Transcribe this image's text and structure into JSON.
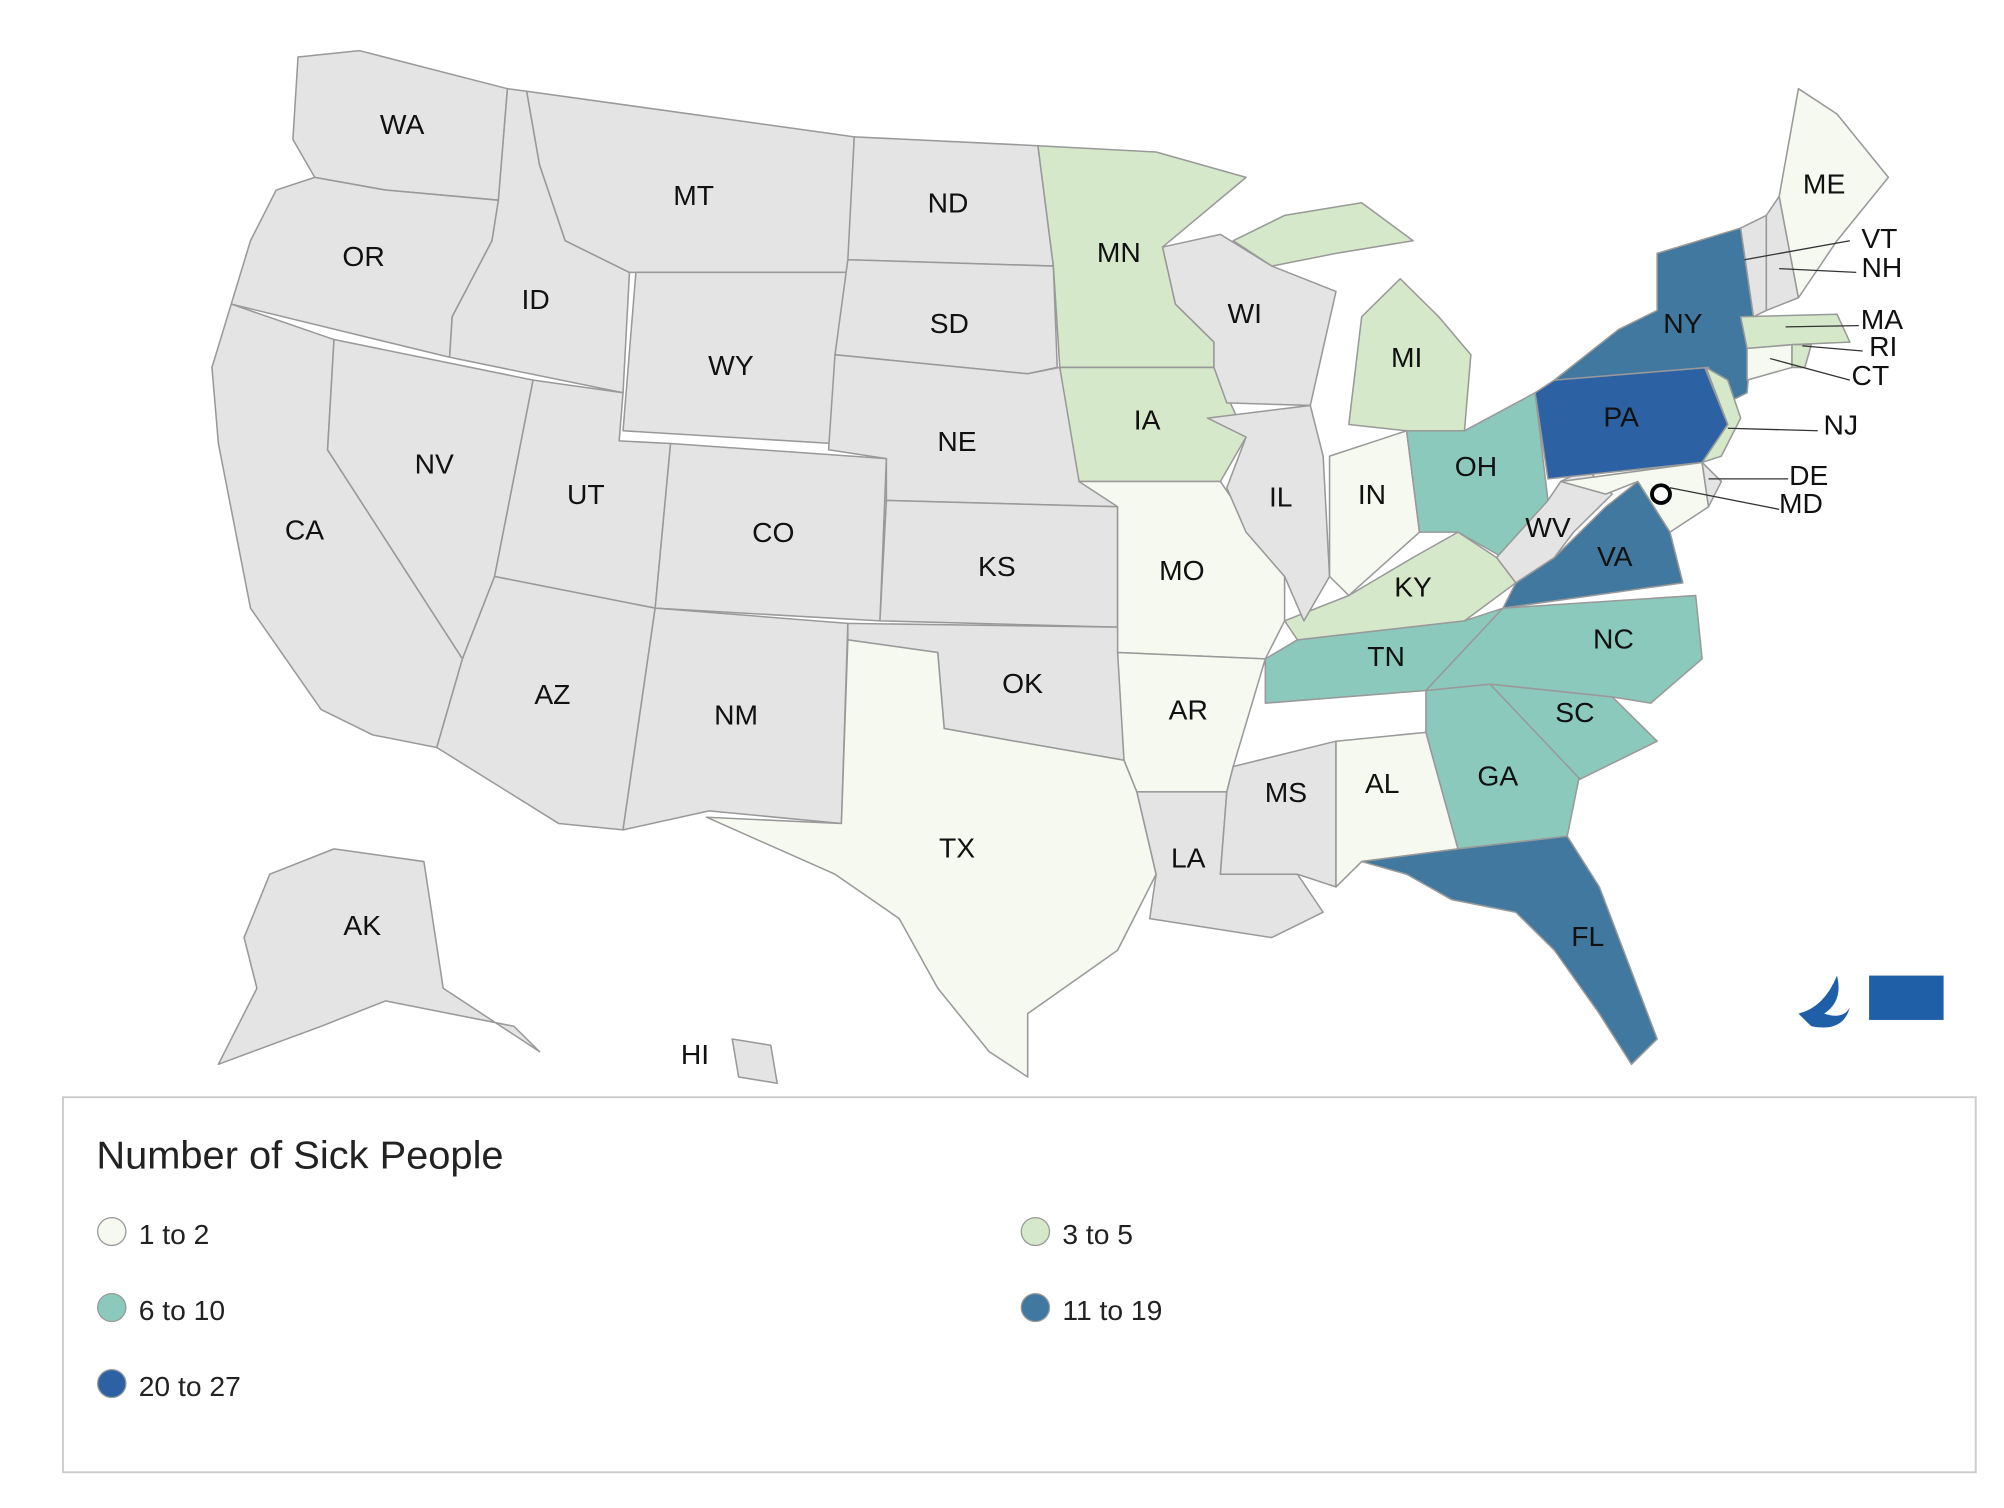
{
  "legend": {
    "title": "Number of Sick People",
    "items": [
      {
        "label": "1 to 2",
        "color": "#f5f9ef"
      },
      {
        "label": "3 to 5",
        "color": "#d5e8c9"
      },
      {
        "label": "6 to 10",
        "color": "#8cc9bd"
      },
      {
        "label": "11 to 19",
        "color": "#40789f"
      },
      {
        "label": "20 to 27",
        "color": "#2c62a3"
      }
    ]
  },
  "no_data_color": "#e4e4e4",
  "states": [
    {
      "label": "WA",
      "category": null
    },
    {
      "label": "OR",
      "category": null
    },
    {
      "label": "ID",
      "category": null
    },
    {
      "label": "MT",
      "category": null
    },
    {
      "label": "WY",
      "category": null
    },
    {
      "label": "ND",
      "category": null
    },
    {
      "label": "SD",
      "category": null
    },
    {
      "label": "NE",
      "category": null
    },
    {
      "label": "CA",
      "category": null
    },
    {
      "label": "NV",
      "category": null
    },
    {
      "label": "UT",
      "category": null
    },
    {
      "label": "CO",
      "category": null
    },
    {
      "label": "AZ",
      "category": null
    },
    {
      "label": "NM",
      "category": null
    },
    {
      "label": "KS",
      "category": null
    },
    {
      "label": "OK",
      "category": null
    },
    {
      "label": "TX",
      "category": 0
    },
    {
      "label": "MN",
      "category": 1
    },
    {
      "label": "IA",
      "category": 1
    },
    {
      "label": "MO",
      "category": 0
    },
    {
      "label": "AR",
      "category": 0
    },
    {
      "label": "LA",
      "category": null
    },
    {
      "label": "MS",
      "category": null
    },
    {
      "label": "AL",
      "category": 0
    },
    {
      "label": "TN",
      "category": 2
    },
    {
      "label": "KY",
      "category": 1
    },
    {
      "label": "IL",
      "category": null
    },
    {
      "label": "IN",
      "category": 0
    },
    {
      "label": "OH",
      "category": 2
    },
    {
      "label": "MI",
      "category": 1
    },
    {
      "label": "WI",
      "category": null
    },
    {
      "label": "GA",
      "category": 2
    },
    {
      "label": "FL",
      "category": 3
    },
    {
      "label": "SC",
      "category": 2
    },
    {
      "label": "NC",
      "category": 2
    },
    {
      "label": "VA",
      "category": 3
    },
    {
      "label": "WV",
      "category": null
    },
    {
      "label": "PA",
      "category": 4
    },
    {
      "label": "NY",
      "category": 3
    },
    {
      "label": "NJ",
      "category": 1
    },
    {
      "label": "MD",
      "category": 0
    },
    {
      "label": "DE",
      "category": null
    },
    {
      "label": "CT",
      "category": 0
    },
    {
      "label": "MA",
      "category": 1
    },
    {
      "label": "RI",
      "category": 1
    },
    {
      "label": "VT",
      "category": null
    },
    {
      "label": "NH",
      "category": null
    },
    {
      "label": "ME",
      "category": 0
    },
    {
      "label": "AK",
      "category": null
    },
    {
      "label": "HI",
      "category": null
    }
  ]
}
